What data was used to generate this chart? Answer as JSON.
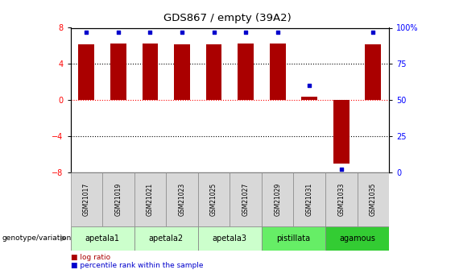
{
  "title": "GDS867 / empty (39A2)",
  "samples": [
    "GSM21017",
    "GSM21019",
    "GSM21021",
    "GSM21023",
    "GSM21025",
    "GSM21027",
    "GSM21029",
    "GSM21031",
    "GSM21033",
    "GSM21035"
  ],
  "log_ratio": [
    6.2,
    6.3,
    6.3,
    6.2,
    6.2,
    6.3,
    6.3,
    0.4,
    -7.0,
    6.2
  ],
  "percentile_rank": [
    97,
    97,
    97,
    97,
    97,
    97,
    97,
    60,
    2,
    97
  ],
  "bar_color": "#aa0000",
  "dot_color": "#0000cc",
  "ylim": [
    -8,
    8
  ],
  "y_left_ticks": [
    -8,
    -4,
    0,
    4,
    8
  ],
  "y_right_ticks": [
    0,
    25,
    50,
    75,
    100
  ],
  "y_right_labels": [
    "0",
    "25",
    "50",
    "75",
    "100%"
  ],
  "dotted_lines_black": [
    4,
    -4
  ],
  "dotted_line_red": 0,
  "groups": [
    {
      "label": "apetala1",
      "start": 0,
      "end": 2,
      "color": "#ccffcc"
    },
    {
      "label": "apetala2",
      "start": 2,
      "end": 4,
      "color": "#ccffcc"
    },
    {
      "label": "apetala3",
      "start": 4,
      "end": 6,
      "color": "#ccffcc"
    },
    {
      "label": "pistillata",
      "start": 6,
      "end": 8,
      "color": "#66ee66"
    },
    {
      "label": "agamous",
      "start": 8,
      "end": 10,
      "color": "#33cc33"
    }
  ],
  "legend_bar_label": "log ratio",
  "legend_dot_label": "percentile rank within the sample",
  "genotype_label": "genotype/variation",
  "bar_width": 0.5,
  "n_samples": 10
}
